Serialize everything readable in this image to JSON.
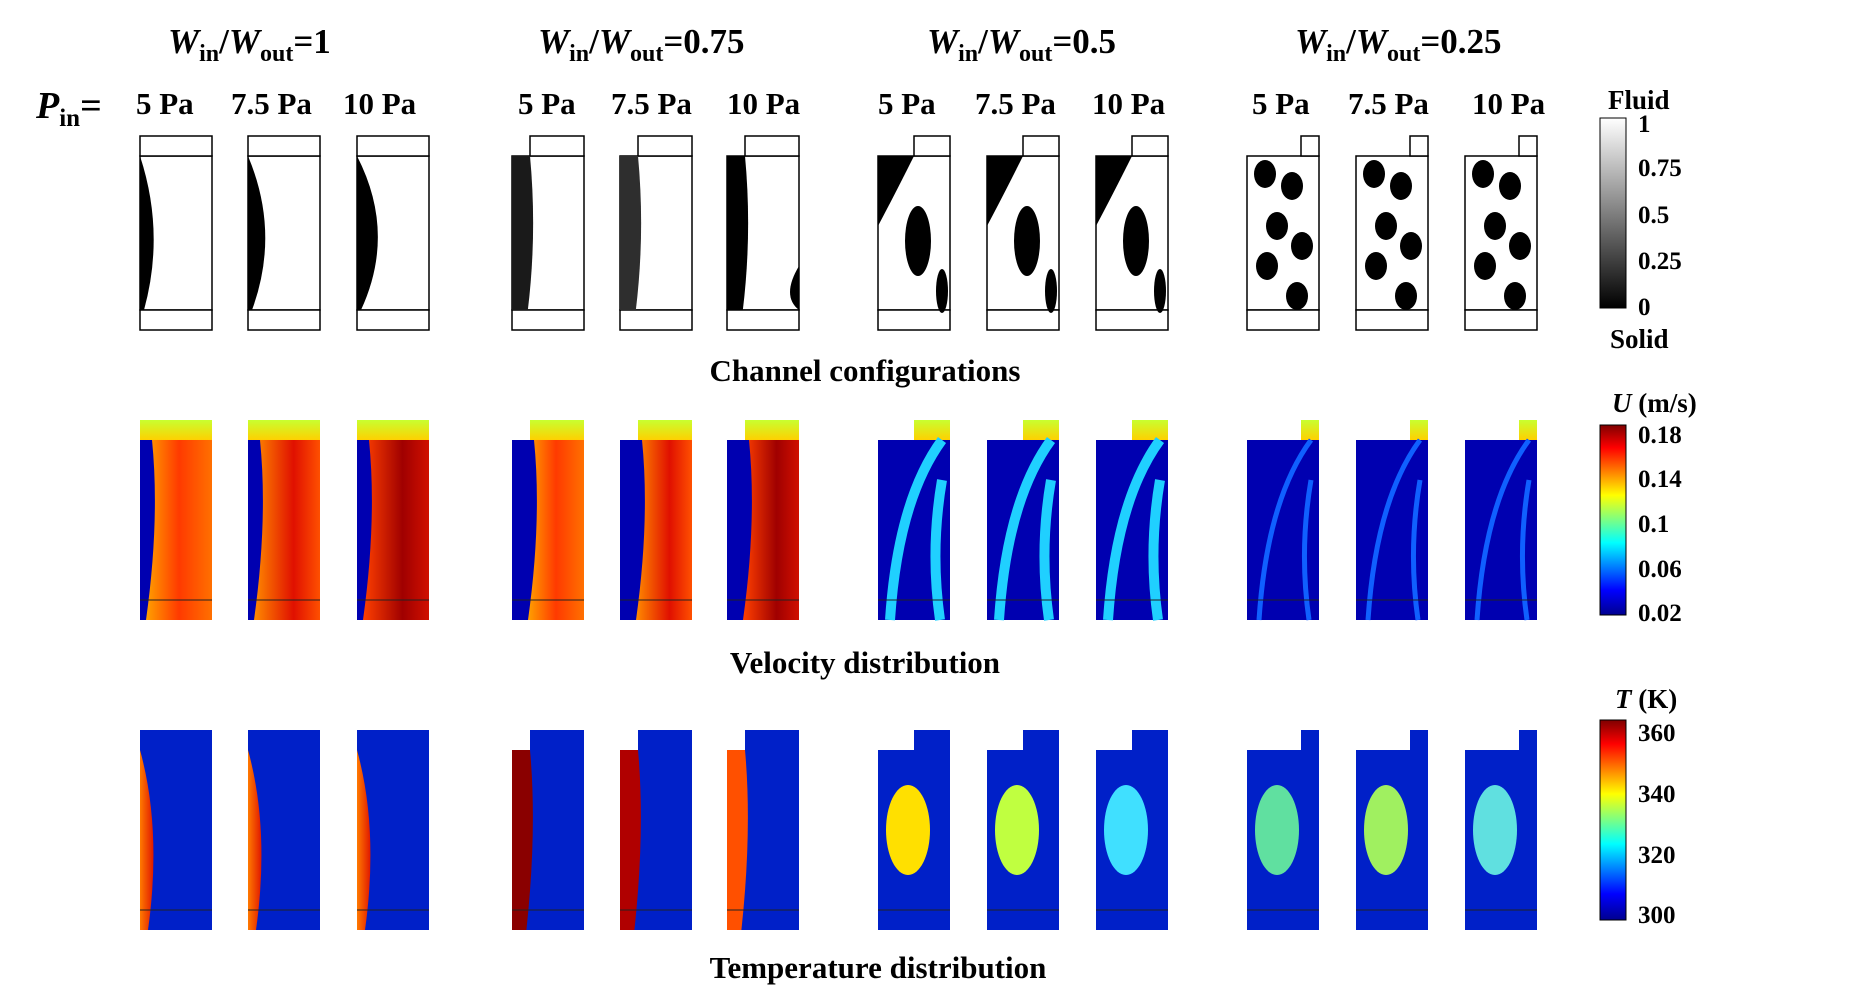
{
  "groups": [
    {
      "symbol_a": "W",
      "sub_a": "in",
      "symbol_b": "W",
      "sub_b": "out",
      "value": "=1"
    },
    {
      "symbol_a": "W",
      "sub_a": "in",
      "symbol_b": "W",
      "sub_b": "out",
      "value": "=0.75"
    },
    {
      "symbol_a": "W",
      "sub_a": "in",
      "symbol_b": "W",
      "sub_b": "out",
      "value": "=0.5"
    },
    {
      "symbol_a": "W",
      "sub_a": "in",
      "symbol_b": "W",
      "sub_b": "out",
      "value": "=0.25"
    }
  ],
  "pressure_label": {
    "symbol": "P",
    "sub": "in",
    "suffix": "="
  },
  "pressures": [
    "5 Pa",
    "7.5 Pa",
    "10 Pa"
  ],
  "sections": {
    "channel": "Channel configurations",
    "velocity": "Velocity distribution",
    "temperature": "Temperature distribution"
  },
  "colorbars": {
    "fluid": {
      "top_label": "Fluid",
      "bottom_label": "Solid",
      "ticks": [
        "1",
        "0.75",
        "0.5",
        "0.25",
        "0"
      ]
    },
    "velocity": {
      "symbol": "U",
      "unit": " (m/s)",
      "ticks": [
        "0.18",
        "0.14",
        "0.1",
        "0.06",
        "0.02"
      ]
    },
    "temperature": {
      "symbol": "T",
      "unit": " (K)",
      "ticks": [
        "360",
        "340",
        "320",
        "300"
      ]
    }
  },
  "colors": {
    "jet_dark_red": "#7f0000",
    "jet_red": "#ff2a00",
    "jet_yellow": "#ffee00",
    "jet_cyan": "#10f0ff",
    "jet_blue": "#0010d0",
    "jet_navy": "#000080"
  }
}
